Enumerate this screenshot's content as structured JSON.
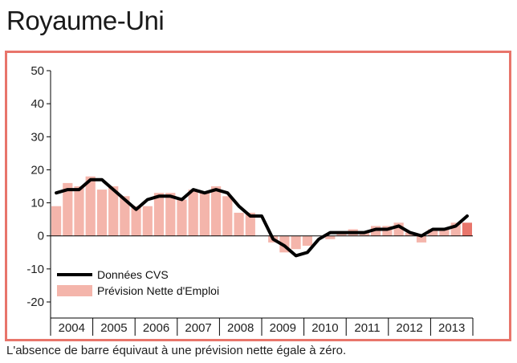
{
  "page": {
    "title": "Royaume-Uni",
    "note": "L'absence de barre équivaut à une prévision nette égale à zéro."
  },
  "colors": {
    "frame": "#e8756b",
    "bar": "#f4b5ab",
    "bar_highlight": "#e8756b",
    "line": "#000000"
  },
  "chart_data": {
    "type": "bar",
    "ylim": [
      -20,
      50
    ],
    "yticks": [
      -20,
      -10,
      0,
      10,
      20,
      30,
      40,
      50
    ],
    "year_labels": [
      "2004",
      "2005",
      "2006",
      "2007",
      "2008",
      "2009",
      "2010",
      "2011",
      "2012",
      "2013"
    ],
    "legend": {
      "placement": "bottom-left",
      "entries": [
        "Données CVS",
        "Prévision Nette d'Emploi"
      ]
    },
    "series": [
      {
        "name": "Prévision Nette d'Emploi",
        "type": "bar",
        "values": [
          9,
          16,
          15,
          18,
          14,
          15,
          12,
          9,
          9,
          13,
          13,
          11,
          14,
          13,
          15,
          12,
          7,
          7,
          0,
          -2,
          -5,
          -4,
          -3,
          0,
          -1,
          1,
          2,
          1,
          3,
          3,
          4,
          1,
          -2,
          2,
          2,
          4,
          4
        ]
      },
      {
        "name": "Données CVS",
        "type": "line",
        "values": [
          13,
          14,
          14,
          17,
          17,
          14,
          11,
          8,
          11,
          12,
          12,
          11,
          14,
          13,
          14,
          13,
          9,
          6,
          6,
          -1,
          -3,
          -6,
          -5,
          -1,
          1,
          1,
          1,
          1,
          2,
          2,
          3,
          1,
          0,
          2,
          2,
          3,
          6
        ]
      }
    ]
  }
}
